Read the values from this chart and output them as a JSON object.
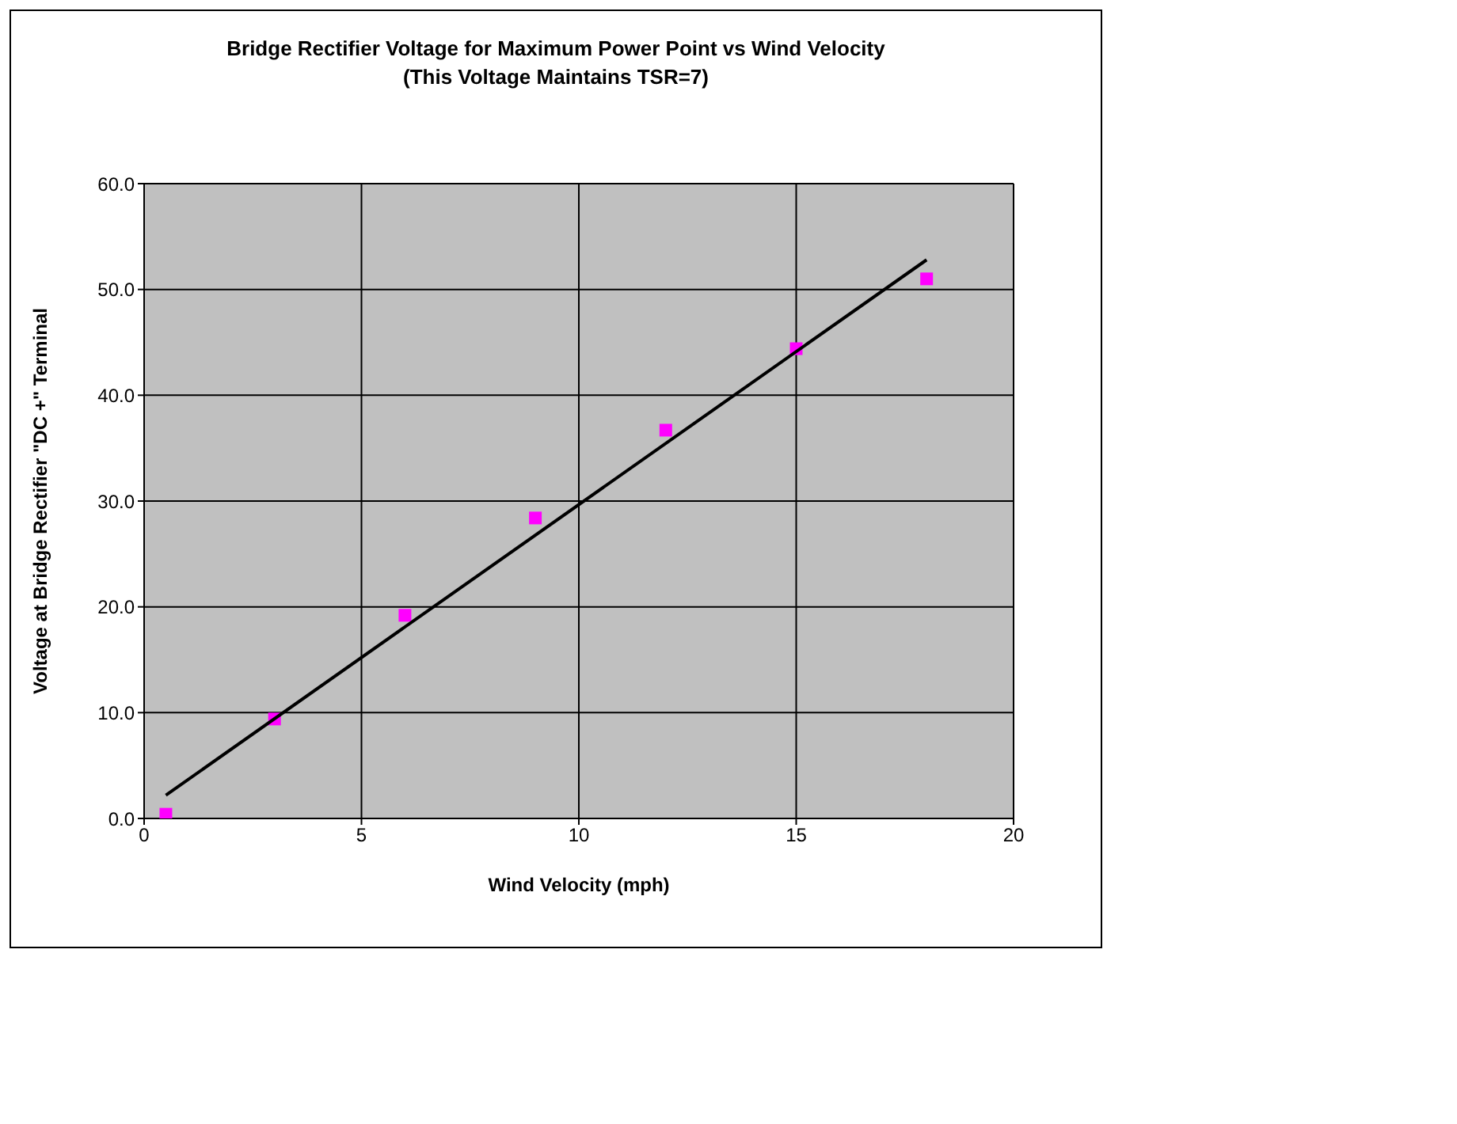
{
  "chart_data": {
    "type": "scatter",
    "title": "Bridge Rectifier Voltage for Maximum Power Point vs Wind Velocity\n(This Voltage Maintains TSR=7)",
    "xlabel": "Wind Velocity (mph)",
    "ylabel": "Voltage at Bridge Rectifier \"DC +\" Terminal",
    "x": [
      0.5,
      3,
      6,
      9,
      12,
      15,
      18
    ],
    "series": [
      {
        "color": "#ff00ff",
        "marker": "square",
        "values": [
          0.4,
          9.4,
          19.2,
          28.4,
          36.7,
          44.4,
          51.0
        ]
      },
      {
        "type": "line",
        "color": "#000000",
        "marker": "none",
        "x": [
          0.5,
          18
        ],
        "values": [
          2.2,
          52.8
        ]
      }
    ],
    "xlim": [
      0,
      20
    ],
    "xticks": [
      0,
      5,
      10,
      15,
      20
    ],
    "ylim": [
      0,
      60
    ],
    "yticks": [
      {
        "value": 0,
        "label": "0.0"
      },
      {
        "value": 10,
        "label": "10.0"
      },
      {
        "value": 20,
        "label": "20.0"
      },
      {
        "value": 30,
        "label": "30.0"
      },
      {
        "value": 40,
        "label": "40.0"
      },
      {
        "value": 50,
        "label": "50.0"
      },
      {
        "value": 60,
        "label": "60.0"
      }
    ],
    "grid": true
  }
}
